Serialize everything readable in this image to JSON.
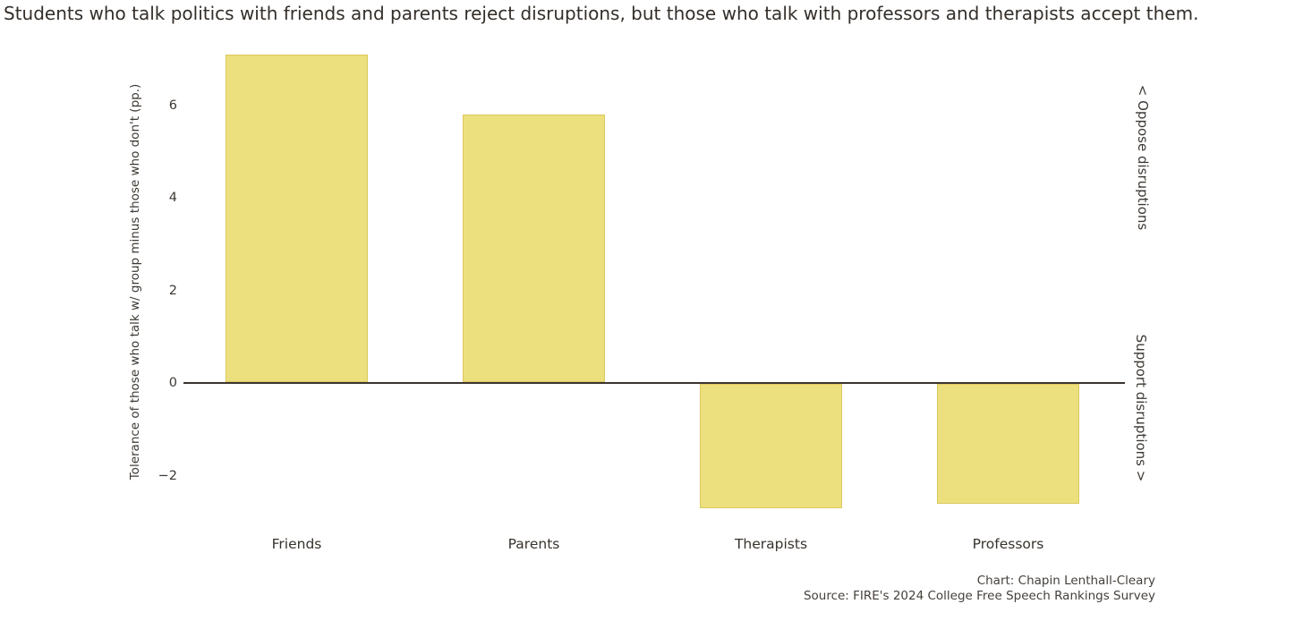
{
  "title": "Students who talk politics with friends and parents reject disruptions, but those who talk with professors and therapists accept them.",
  "chart_data": {
    "type": "bar",
    "categories": [
      "Friends",
      "Parents",
      "Therapists",
      "Professors"
    ],
    "values": [
      7.1,
      5.8,
      -2.7,
      -2.6
    ],
    "title": "Students who talk politics with friends and parents reject disruptions, but those who talk with professors and therapists accept them.",
    "xlabel": "",
    "ylabel": "Tolerance of those who talk w/ group minus those who don't (pp.)",
    "yticks": [
      6,
      4,
      2,
      0,
      -2
    ],
    "ylim": [
      -3.03,
      7.41
    ],
    "grid": false,
    "legend": "none",
    "bar_color": "#ECE07E",
    "bar_edge_color": "#DCC75F",
    "axis_color": "#3B3530",
    "annotations": {
      "top_right": "< Oppose disruptions",
      "bottom_right": "Support disruptions >"
    }
  },
  "credits": {
    "chart_line": "Chart: Chapin Lenthall-Cleary",
    "source_line": "Source: FIRE's 2024 College Free Speech Rankings Survey"
  }
}
